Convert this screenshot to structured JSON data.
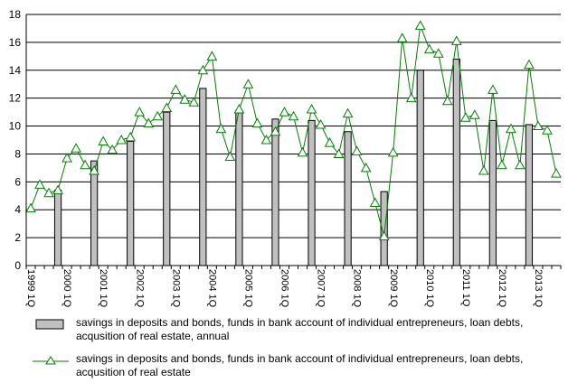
{
  "chart_data": {
    "type": "bar+line",
    "title": "",
    "xlabel": "",
    "ylabel": "",
    "ylim": [
      0,
      18
    ],
    "yticks": [
      0,
      2,
      4,
      6,
      8,
      10,
      12,
      14,
      16,
      18
    ],
    "grid": "horizontal",
    "legend_position": "bottom",
    "x_tick_labels": [
      "1999 1Q",
      "2000 1Q",
      "2001 1Q",
      "2002 1Q",
      "2003 1Q",
      "2004 1Q",
      "2005 1Q",
      "2006 1Q",
      "2007 1Q",
      "2008 1Q",
      "2009 1Q",
      "2010 1Q",
      "2011 1Q",
      "2012 1Q",
      "2013 1Q"
    ],
    "quarters_count": 59,
    "series": [
      {
        "name": "savings in deposits and bonds, funds in bank account of individual entrepreneurs, loan debts, acqusition of real estate, annual",
        "type": "bar",
        "color": "#c0c0c0",
        "points": [
          {
            "quarter_index": 3,
            "value": 5.4
          },
          {
            "quarter_index": 7,
            "value": 7.5
          },
          {
            "quarter_index": 11,
            "value": 8.9
          },
          {
            "quarter_index": 15,
            "value": 11.0
          },
          {
            "quarter_index": 19,
            "value": 12.7
          },
          {
            "quarter_index": 23,
            "value": 11.1
          },
          {
            "quarter_index": 27,
            "value": 10.5
          },
          {
            "quarter_index": 31,
            "value": 10.4
          },
          {
            "quarter_index": 35,
            "value": 9.6
          },
          {
            "quarter_index": 39,
            "value": 5.3
          },
          {
            "quarter_index": 43,
            "value": 14.0
          },
          {
            "quarter_index": 47,
            "value": 14.8
          },
          {
            "quarter_index": 51,
            "value": 10.4
          },
          {
            "quarter_index": 55,
            "value": 10.1
          }
        ]
      },
      {
        "name": "savings in deposits and bonds, funds in bank account of individual entrepreneurs, loan debts, acqusition of real estate",
        "type": "line",
        "color": "#008000",
        "marker": "triangle",
        "values": [
          4.1,
          5.8,
          5.2,
          5.4,
          7.7,
          8.4,
          7.2,
          6.8,
          8.9,
          8.3,
          9.0,
          9.2,
          11.0,
          10.2,
          10.7,
          11.3,
          12.6,
          11.9,
          11.7,
          14.0,
          15.0,
          9.8,
          7.8,
          11.2,
          13.0,
          10.2,
          9.0,
          9.6,
          11.0,
          10.7,
          8.1,
          11.2,
          10.1,
          8.8,
          8.0,
          10.9,
          8.2,
          7.0,
          4.5,
          2.1,
          8.1,
          16.3,
          12.0,
          17.2,
          15.5,
          15.2,
          11.8,
          16.1,
          10.6,
          10.8,
          6.8,
          12.6,
          7.2,
          9.8,
          7.2,
          14.4,
          10.0,
          9.7,
          6.6
        ]
      }
    ]
  }
}
